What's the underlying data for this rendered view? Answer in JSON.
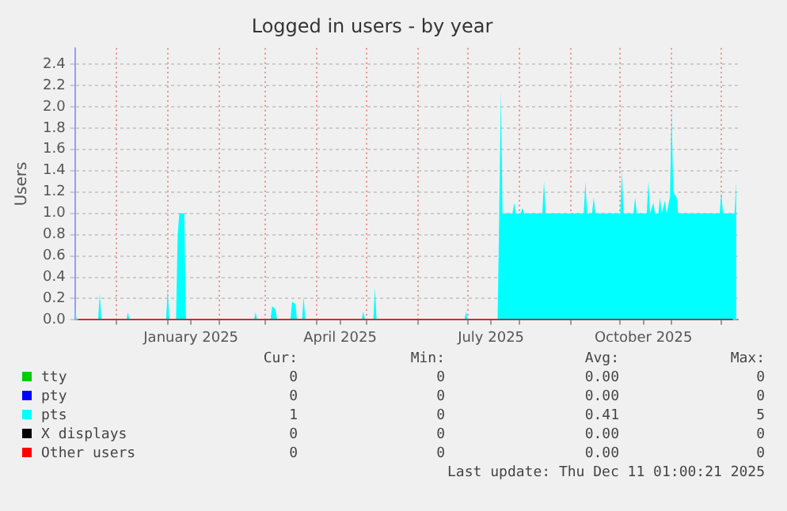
{
  "chart_data": {
    "type": "area",
    "title": "Logged in users - by year",
    "ylabel": "Users",
    "xlim": [
      "2024-11-06",
      "2025-12-11"
    ],
    "ylim": [
      0,
      2.55
    ],
    "yticks": [
      {
        "value": 0,
        "label": "0.0"
      },
      0.2,
      0.4,
      0.6,
      0.8,
      {
        "value": 1,
        "label": "1.0"
      },
      1.2,
      1.4,
      1.6,
      1.8,
      {
        "value": 2,
        "label": "2.0"
      },
      2.2,
      2.4
    ],
    "xticks": [
      {
        "value": "2024-12-01",
        "label": null
      },
      {
        "value": "2025-01-01",
        "label": null
      },
      {
        "value": "2025-01-15",
        "label": "January 2025"
      },
      {
        "value": "2025-02-01",
        "label": null
      },
      {
        "value": "2025-03-01",
        "label": null
      },
      {
        "value": "2025-04-01",
        "label": null
      },
      {
        "value": "2025-04-15",
        "label": "April 2025"
      },
      {
        "value": "2025-05-01",
        "label": null
      },
      {
        "value": "2025-06-01",
        "label": null
      },
      {
        "value": "2025-07-01",
        "label": null
      },
      {
        "value": "2025-07-15",
        "label": "July 2025"
      },
      {
        "value": "2025-08-01",
        "label": null
      },
      {
        "value": "2025-09-01",
        "label": null
      },
      {
        "value": "2025-10-01",
        "label": null
      },
      {
        "value": "2025-10-15",
        "label": "October 2025"
      },
      {
        "value": "2025-11-01",
        "label": null
      },
      {
        "value": "2025-12-01",
        "label": null
      }
    ],
    "grid": true,
    "legend": "bottom",
    "marker": "none",
    "series": [
      {
        "name": "tty",
        "color": "#00cc00",
        "values": [
          null
        ]
      },
      {
        "name": "pty",
        "color": "#0000ff",
        "values": [
          null
        ]
      },
      {
        "name": "pts",
        "color": "#00ffff",
        "x": [
          "2024-11-06",
          "2024-11-07",
          "2024-11-20",
          "2024-11-21",
          "2024-11-22",
          "2024-12-07",
          "2024-12-08",
          "2024-12-09",
          "2024-12-31",
          "2025-01-01",
          "2025-01-02",
          "2025-01-06",
          "2025-01-07",
          "2025-01-08",
          "2025-01-11",
          "2025-01-12",
          "2025-02-22",
          "2025-02-23",
          "2025-02-24",
          "2025-03-04",
          "2025-03-05",
          "2025-03-07",
          "2025-03-08",
          "2025-03-16",
          "2025-03-17",
          "2025-03-19",
          "2025-03-20",
          "2025-03-23",
          "2025-03-24",
          "2025-03-25",
          "2025-04-28",
          "2025-04-29",
          "2025-04-30",
          "2025-05-05",
          "2025-05-06",
          "2025-05-07",
          "2025-06-29",
          "2025-06-30",
          "2025-07-01",
          "2025-07-19",
          "2025-07-20",
          "2025-07-21",
          "2025-07-22",
          "2025-07-28",
          "2025-07-29",
          "2025-07-30",
          "2025-08-02",
          "2025-08-03",
          "2025-08-04",
          "2025-08-15",
          "2025-08-16",
          "2025-08-17",
          "2025-09-09",
          "2025-09-10",
          "2025-09-11",
          "2025-09-14",
          "2025-09-15",
          "2025-09-16",
          "2025-10-01",
          "2025-10-02",
          "2025-10-03",
          "2025-10-09",
          "2025-10-10",
          "2025-10-11",
          "2025-10-17",
          "2025-10-18",
          "2025-10-19",
          "2025-10-21",
          "2025-10-22",
          "2025-10-24",
          "2025-10-25",
          "2025-10-26",
          "2025-10-28",
          "2025-10-29",
          "2025-10-31",
          "2025-11-01",
          "2025-11-02",
          "2025-11-04",
          "2025-11-05",
          "2025-11-30",
          "2025-12-01",
          "2025-12-02",
          "2025-12-09",
          "2025-12-10"
        ],
        "values": [
          0.15,
          0,
          0,
          0.25,
          0,
          0,
          0.07,
          0,
          0,
          0.28,
          0,
          0,
          0.8,
          1,
          1,
          0,
          0,
          0.07,
          0,
          0,
          0.13,
          0.1,
          0,
          0,
          0.17,
          0.15,
          0,
          0,
          0.22,
          0,
          0,
          0.08,
          0,
          0,
          0.3,
          0,
          0,
          0.08,
          0,
          0,
          1,
          2.15,
          1,
          1,
          1.1,
          1,
          1,
          1.05,
          1,
          1,
          1.3,
          1,
          1,
          1.3,
          1,
          1,
          1.15,
          1,
          1,
          1.4,
          1,
          1,
          1.15,
          1,
          1,
          1.3,
          1,
          1.1,
          1,
          1,
          1.15,
          1,
          1.12,
          1,
          1.15,
          1.97,
          1.2,
          1.15,
          1,
          1,
          1.2,
          1,
          1,
          1.3
        ]
      },
      {
        "name": "X displays",
        "color": "#000000",
        "values": [
          null
        ]
      },
      {
        "name": "Other users",
        "type": "line",
        "color": "#ff0000",
        "x": [
          "2024-11-08",
          "2025-12-08"
        ],
        "values": [
          0,
          0
        ]
      }
    ],
    "annotations": [
      "Cur:",
      "Min:",
      "Avg:",
      "Max:",
      "0",
      "0",
      "0.00",
      "0",
      "0",
      "0",
      "0.00",
      "0",
      "1",
      "0",
      "0.41",
      "5",
      "0",
      "0",
      "0.00",
      "0",
      "0",
      "0",
      "0.00",
      "0",
      "Last update: Thu Dec 11 01:00:21 2025"
    ]
  }
}
